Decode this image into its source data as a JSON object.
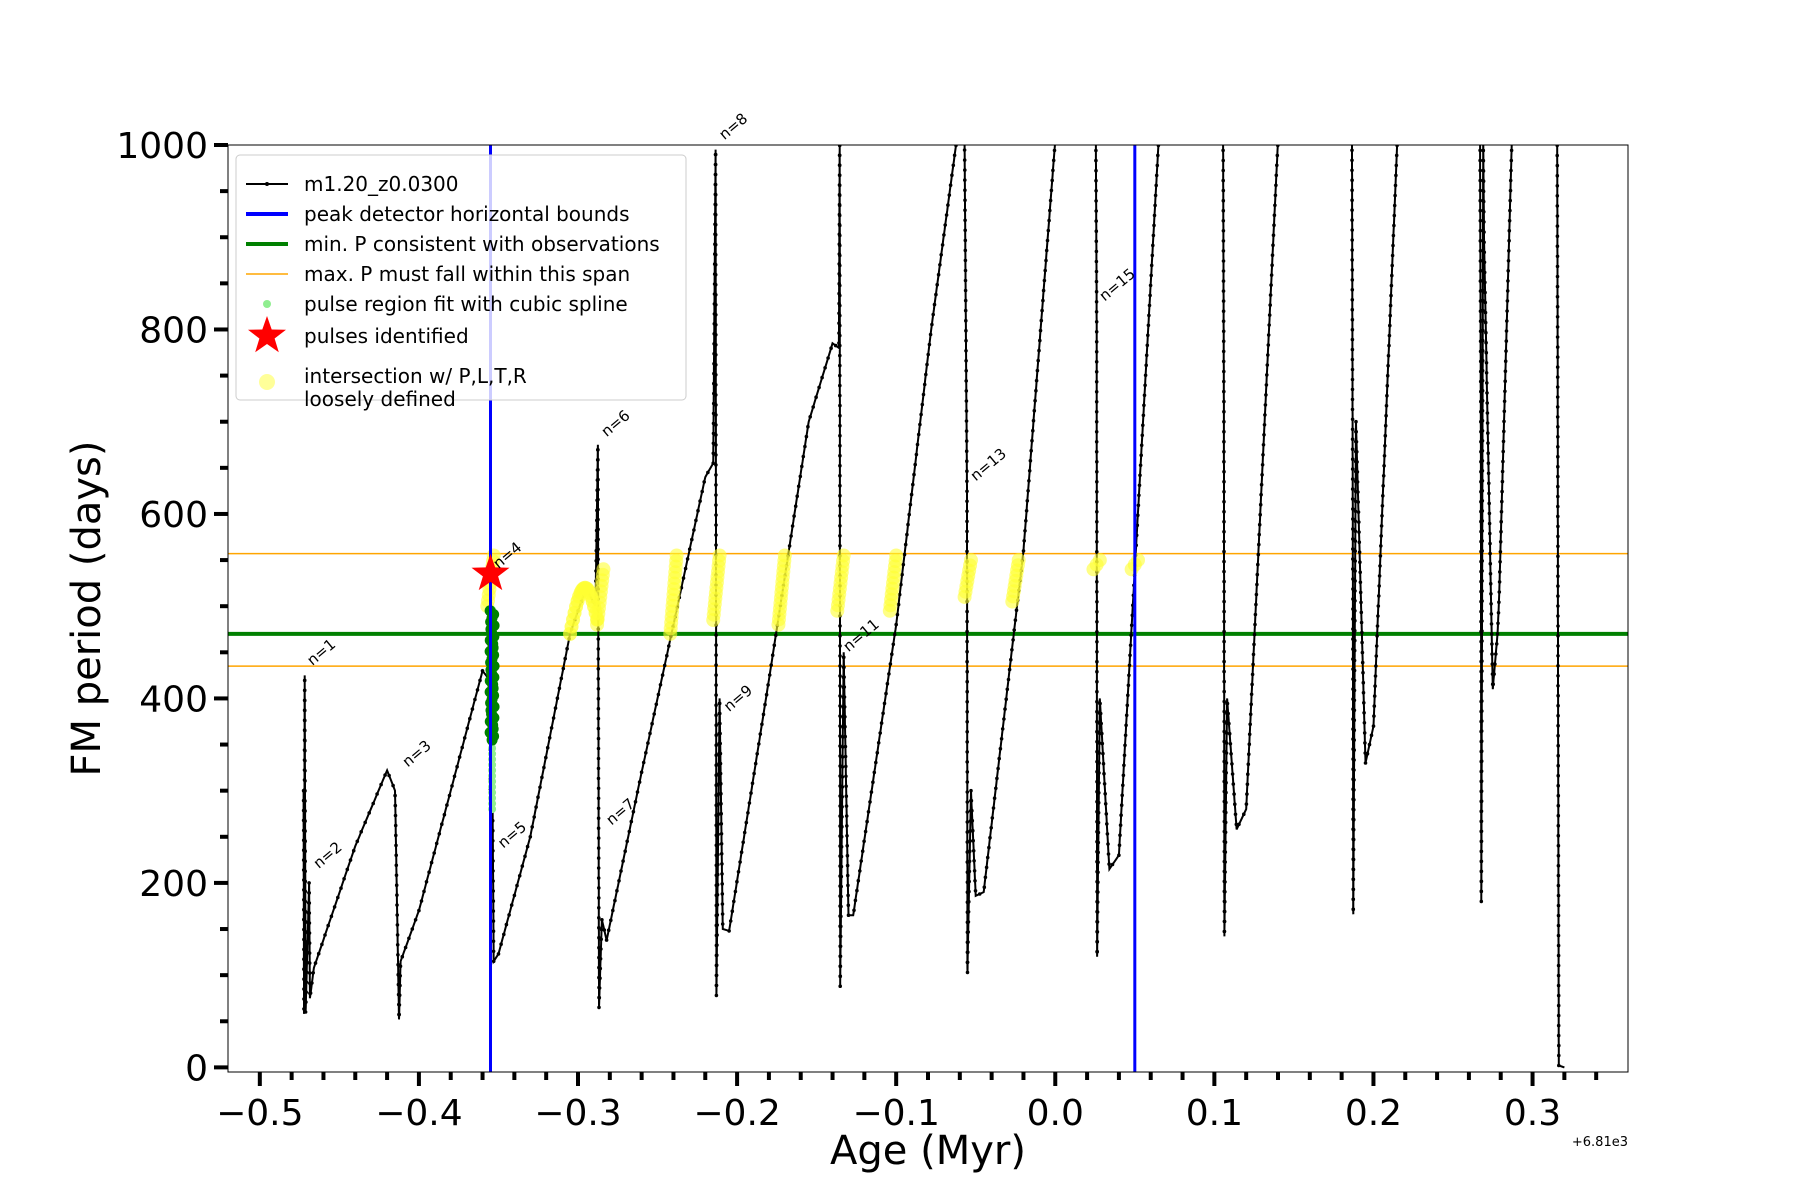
{
  "chart_data": {
    "type": "line",
    "title": "",
    "xlabel": "Age (Myr)",
    "ylabel": "FM period (days)",
    "x_offset_label": "+6.81e3",
    "xlim": [
      -0.52,
      0.36
    ],
    "ylim": [
      -5,
      1000
    ],
    "x_ticks": [
      -0.5,
      -0.4,
      -0.3,
      -0.2,
      -0.1,
      0.0,
      0.1,
      0.2,
      0.3
    ],
    "x_tick_labels": [
      "−0.5",
      "−0.4",
      "−0.3",
      "−0.2",
      "−0.1",
      "0.0",
      "0.1",
      "0.2",
      "0.3"
    ],
    "y_ticks": [
      0,
      200,
      400,
      600,
      800,
      1000
    ],
    "y_tick_labels": [
      "0",
      "200",
      "400",
      "600",
      "800",
      "1000"
    ],
    "grid": false,
    "legend_position": "top-left",
    "legend": [
      {
        "label": "m1.20_z0.0300",
        "kind": "line-dot",
        "color": "#000000"
      },
      {
        "label": "peak detector horizontal bounds",
        "kind": "line",
        "color": "#0000ff"
      },
      {
        "label": "min. P consistent with observations",
        "kind": "line",
        "color": "#008000"
      },
      {
        "label": "max. P must fall within this span",
        "kind": "thin-line",
        "color": "#ffa500"
      },
      {
        "label": "pulse region fit with cubic spline",
        "kind": "dot",
        "color": "#90ee90"
      },
      {
        "label": "pulses identified",
        "kind": "star",
        "color": "#ff0000"
      },
      {
        "label": "intersection w/ P,L,T,R",
        "label2": "loosely defined",
        "kind": "big-dot",
        "color": "#ffff99"
      }
    ],
    "vertical_lines": [
      {
        "x": -0.355,
        "color": "#0000ff"
      },
      {
        "x": 0.05,
        "color": "#0000ff"
      }
    ],
    "horizontal_lines": [
      {
        "y": 470,
        "color": "#008000",
        "role": "min"
      },
      {
        "y": 557,
        "color": "#ffa500",
        "role": "max-upper"
      },
      {
        "y": 435,
        "color": "#ffa500",
        "role": "max-lower"
      }
    ],
    "pulses": [
      {
        "n": "n=1",
        "x_drop": -0.472,
        "p_peak": 425,
        "p_end": 58,
        "p_next": 300,
        "label_y": 435
      },
      {
        "n": "n=2",
        "x_drop": -0.468,
        "p_peak": 300,
        "p_end": 75,
        "p_next": 108,
        "label_y": 215
      },
      {
        "n": "n=3",
        "x_drop": -0.412,
        "p_peak": 322,
        "p_end": 52,
        "p_next": 112,
        "label_y": 325
      },
      {
        "n": "n=4",
        "x_drop": -0.355,
        "p_peak": 430,
        "p_end": 535,
        "p_next": 500,
        "label_y": 540
      },
      {
        "n": "n=5",
        "x_drop": -0.352,
        "p_peak": 500,
        "p_end": 115,
        "p_next": 123,
        "label_y": 237
      },
      {
        "n": "n=6",
        "x_drop": -0.287,
        "p_peak": 675,
        "p_end": 65,
        "p_next": 160,
        "label_y": 683
      },
      {
        "n": "n=7",
        "x_drop": -0.284,
        "p_peak": 410,
        "p_end": 160,
        "p_next": 138,
        "label_y": 262
      },
      {
        "n": "n=8",
        "x_drop": -0.213,
        "p_peak": 995,
        "p_end": 78,
        "p_next": 400,
        "label_y": 1005
      },
      {
        "n": "n=9",
        "x_drop": -0.21,
        "p_peak": 400,
        "p_end": 150,
        "p_next": 148,
        "label_y": 385
      },
      {
        "n": "n=11",
        "x_drop": -0.135,
        "p_peak": 450,
        "p_end": 88,
        "p_next": 165,
        "label_y": 450
      },
      {
        "n": "n=13",
        "x_drop": -0.055,
        "p_peak": 630,
        "p_end": 103,
        "p_next": 186,
        "label_y": 635
      },
      {
        "n": "n=15",
        "x_drop": 0.026,
        "p_peak": 830,
        "p_end": 120,
        "p_next": 215,
        "label_y": 830
      }
    ],
    "pulses_identified": [
      {
        "x": -0.355,
        "y": 535
      }
    ],
    "spline_region": {
      "x": -0.354,
      "y_min": 280,
      "y_max": 500
    },
    "green_points": {
      "x": -0.354,
      "y_min": 355,
      "y_max": 495
    },
    "intersections": [
      {
        "x": -0.355,
        "y_min": 500,
        "y_max": 555
      },
      {
        "x0": -0.305,
        "x1": -0.288,
        "y_min": 470,
        "y_max": 520
      },
      {
        "x": -0.286,
        "y_min": 480,
        "y_max": 540
      },
      {
        "x": -0.24,
        "y_min": 470,
        "y_max": 555
      },
      {
        "x": -0.213,
        "y_min": 485,
        "y_max": 555
      },
      {
        "x": -0.172,
        "y_min": 480,
        "y_max": 555
      },
      {
        "x": -0.135,
        "y_min": 495,
        "y_max": 555
      },
      {
        "x": -0.102,
        "y_min": 495,
        "y_max": 555
      },
      {
        "x": -0.055,
        "y_min": 510,
        "y_max": 550
      },
      {
        "x": -0.025,
        "y_min": 505,
        "y_max": 550
      },
      {
        "x": 0.026,
        "y_min": 540,
        "y_max": 550
      },
      {
        "x": 0.05,
        "y_min": 540,
        "y_max": 550
      }
    ]
  }
}
